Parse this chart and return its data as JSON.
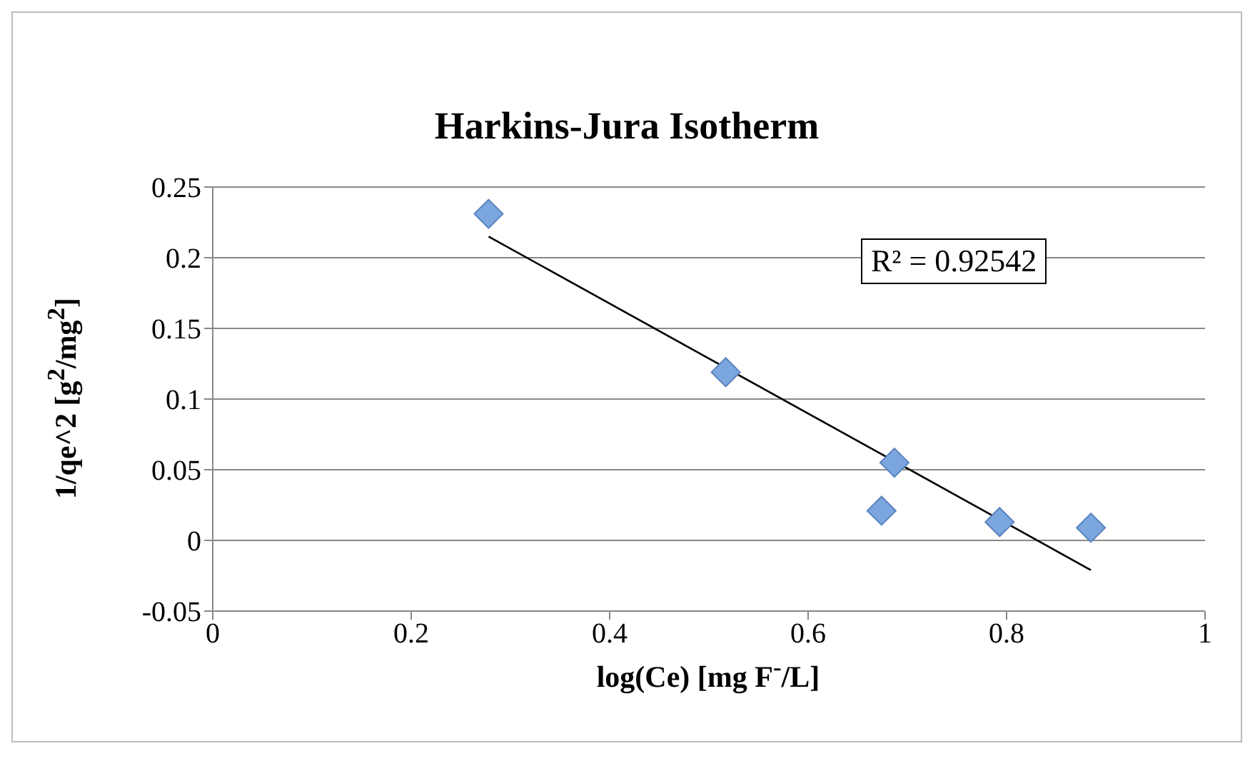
{
  "chart_data": {
    "type": "scatter",
    "title": "Harkins-Jura Isotherm",
    "xlabel": "log(Ce) [mg F$^{-}$/L]",
    "ylabel": "1/qe^2 [g$^{2}$/mg$^{2}$]",
    "x": [
      0.278,
      0.517,
      0.687,
      0.674,
      0.793,
      0.885
    ],
    "series": [
      {
        "color": "#7ba6de",
        "marker": "diamond",
        "values": [
          0.231,
          0.119,
          0.055,
          0.021,
          0.013,
          0.009
        ]
      },
      {
        "type": "line",
        "color": "#000000",
        "x": [
          0.278,
          0.885
        ],
        "values": [
          0.215,
          -0.021
        ]
      }
    ],
    "xlim": [
      0,
      1
    ],
    "xticks": [
      0,
      0.2,
      0.4,
      0.6,
      0.8,
      1
    ],
    "ylim": [
      -0.05,
      0.25
    ],
    "yticks": [
      -0.05,
      0,
      0.05,
      0.1,
      0.15,
      0.2,
      0.25
    ],
    "grid": "y",
    "annotations": [
      "R² = 0.92542"
    ]
  }
}
